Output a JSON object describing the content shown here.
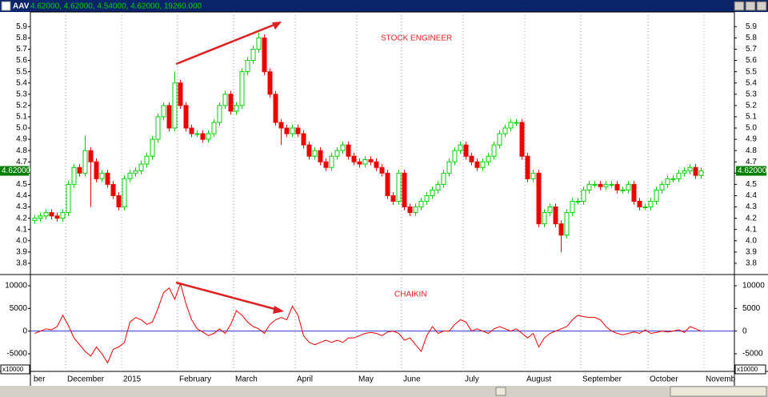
{
  "window": {
    "title": "AAV",
    "quote": "4.62000, 4.62000, 4.54000, 4.62000, 19260.000"
  },
  "chart_data": [
    {
      "type": "candlestick",
      "annotations": [
        "STOCK ENGINEER"
      ],
      "last_label": "4.62000",
      "up_color": "#00d000",
      "down_color": "#ee0000",
      "ylim": [
        3.7,
        6.03
      ],
      "yticks": [
        3.8,
        3.9,
        {
          "value": 4,
          "label": "4.0"
        },
        4.1,
        4.2,
        4.3,
        4.4,
        4.5,
        4.6,
        4.7,
        4.8,
        4.9,
        {
          "value": 5,
          "label": "5.0"
        },
        5.1,
        5.2,
        5.3,
        5.4,
        5.5,
        5.6,
        5.7,
        5.8,
        5.9
      ],
      "grid": true,
      "categories": [
        "ber",
        null,
        null,
        null,
        null,
        null,
        "December",
        null,
        null,
        null,
        null,
        null,
        null,
        null,
        null,
        null,
        "2015",
        null,
        null,
        null,
        null,
        null,
        null,
        null,
        null,
        null,
        "February",
        null,
        null,
        null,
        null,
        null,
        null,
        null,
        null,
        null,
        "March",
        null,
        null,
        null,
        null,
        null,
        null,
        null,
        null,
        null,
        null,
        "April",
        null,
        null,
        null,
        null,
        null,
        null,
        null,
        null,
        null,
        null,
        "May",
        null,
        null,
        null,
        null,
        null,
        null,
        null,
        "June",
        null,
        null,
        null,
        null,
        null,
        null,
        null,
        null,
        null,
        null,
        "July",
        null,
        null,
        null,
        null,
        null,
        null,
        null,
        null,
        null,
        null,
        "August",
        null,
        null,
        null,
        null,
        null,
        null,
        null,
        null,
        null,
        "September",
        null,
        null,
        null,
        null,
        null,
        null,
        null,
        null,
        null,
        null,
        null,
        "October",
        null,
        null,
        null,
        null,
        null,
        null,
        null,
        null,
        null,
        "Novemb",
        null
      ],
      "open": [
        4.18,
        4.2,
        4.22,
        4.25,
        4.22,
        4.2,
        4.25,
        4.5,
        4.65,
        4.6,
        4.8,
        4.7,
        4.55,
        4.6,
        4.5,
        4.4,
        4.3,
        4.55,
        4.6,
        4.62,
        4.68,
        4.75,
        4.9,
        5.1,
        5.2,
        5.0,
        5.4,
        5.2,
        5.0,
        4.95,
        4.95,
        4.9,
        4.95,
        5.05,
        5.2,
        5.3,
        5.15,
        5.2,
        5.5,
        5.6,
        5.7,
        5.8,
        5.5,
        5.3,
        5.05,
        5.0,
        4.95,
        5.0,
        4.95,
        4.85,
        4.75,
        4.8,
        4.7,
        4.65,
        4.75,
        4.8,
        4.85,
        4.75,
        4.7,
        4.68,
        4.72,
        4.7,
        4.65,
        4.6,
        4.4,
        4.35,
        4.6,
        4.3,
        4.25,
        4.3,
        4.35,
        4.4,
        4.45,
        4.5,
        4.6,
        4.7,
        4.8,
        4.85,
        4.75,
        4.7,
        4.65,
        4.7,
        4.75,
        4.85,
        4.95,
        5.0,
        5.05,
        5.05,
        4.75,
        4.55,
        4.6,
        4.15,
        4.25,
        4.3,
        4.15,
        4.05,
        4.25,
        4.35,
        4.35,
        4.45,
        4.5,
        4.5,
        4.48,
        4.5,
        4.5,
        4.45,
        4.45,
        4.5,
        4.35,
        4.3,
        4.3,
        4.35,
        4.45,
        4.5,
        4.55,
        4.55,
        4.6,
        4.62,
        4.65,
        4.58,
        null,
        null
      ],
      "high": [
        4.23,
        4.25,
        4.28,
        4.28,
        4.25,
        4.28,
        4.53,
        4.68,
        4.68,
        4.93,
        4.83,
        4.73,
        4.63,
        4.63,
        4.53,
        4.43,
        4.58,
        4.63,
        4.65,
        4.71,
        4.78,
        4.93,
        5.13,
        5.23,
        5.23,
        5.5,
        5.43,
        5.23,
        5.03,
        4.98,
        4.98,
        4.98,
        5.08,
        5.23,
        5.33,
        5.33,
        5.23,
        5.53,
        5.63,
        5.73,
        5.85,
        5.83,
        5.53,
        5.33,
        5.08,
        5.03,
        5.03,
        5.03,
        4.98,
        4.88,
        4.83,
        4.83,
        4.73,
        4.78,
        4.83,
        4.88,
        4.88,
        4.78,
        4.73,
        4.75,
        4.75,
        4.73,
        4.68,
        4.63,
        4.43,
        4.63,
        4.63,
        4.33,
        4.33,
        4.38,
        4.43,
        4.48,
        4.53,
        4.63,
        4.73,
        4.83,
        4.88,
        4.88,
        4.78,
        4.73,
        4.73,
        4.78,
        4.88,
        4.98,
        5.03,
        5.08,
        5.08,
        5.08,
        4.78,
        4.63,
        4.63,
        4.28,
        4.33,
        4.33,
        4.18,
        4.28,
        4.38,
        4.38,
        4.48,
        4.53,
        4.53,
        4.53,
        4.53,
        4.53,
        4.53,
        4.48,
        4.53,
        4.53,
        4.38,
        4.33,
        4.38,
        4.48,
        4.53,
        4.58,
        4.58,
        4.63,
        4.65,
        4.68,
        4.68,
        4.65,
        null,
        null
      ],
      "low": [
        4.15,
        4.17,
        4.19,
        4.19,
        4.17,
        4.17,
        4.22,
        4.47,
        4.57,
        4.57,
        4.3,
        4.52,
        4.52,
        4.47,
        4.37,
        4.27,
        4.27,
        4.52,
        4.57,
        4.59,
        4.65,
        4.72,
        4.87,
        5.07,
        4.97,
        4.97,
        5.17,
        4.97,
        4.92,
        4.92,
        4.87,
        4.87,
        4.92,
        5.02,
        5.17,
        5.12,
        5.12,
        5.17,
        5.47,
        5.57,
        5.67,
        5.47,
        5.27,
        5.02,
        4.85,
        4.92,
        4.92,
        4.92,
        4.82,
        4.72,
        4.72,
        4.67,
        4.62,
        4.62,
        4.72,
        4.77,
        4.72,
        4.67,
        4.65,
        4.65,
        4.67,
        4.62,
        4.57,
        4.37,
        4.32,
        4.32,
        4.27,
        4.22,
        4.22,
        4.27,
        4.32,
        4.37,
        4.42,
        4.47,
        4.57,
        4.67,
        4.77,
        4.72,
        4.67,
        4.62,
        4.62,
        4.67,
        4.72,
        4.82,
        4.92,
        4.97,
        5.02,
        4.72,
        4.52,
        4.52,
        4.12,
        4.12,
        4.22,
        4.12,
        3.9,
        4.02,
        4.22,
        4.32,
        4.32,
        4.42,
        4.47,
        4.45,
        4.45,
        4.47,
        4.42,
        4.42,
        4.42,
        4.32,
        4.27,
        4.27,
        4.27,
        4.32,
        4.42,
        4.47,
        4.52,
        4.52,
        4.57,
        4.59,
        4.55,
        4.55,
        null,
        null
      ],
      "close": [
        4.2,
        4.22,
        4.25,
        4.22,
        4.2,
        4.25,
        4.5,
        4.65,
        4.6,
        4.8,
        4.7,
        4.55,
        4.6,
        4.5,
        4.4,
        4.3,
        4.55,
        4.6,
        4.62,
        4.68,
        4.75,
        4.9,
        5.1,
        5.2,
        5.0,
        5.4,
        5.2,
        5.0,
        4.95,
        4.95,
        4.9,
        4.95,
        5.05,
        5.2,
        5.3,
        5.15,
        5.2,
        5.5,
        5.6,
        5.7,
        5.8,
        5.5,
        5.3,
        5.05,
        5.0,
        4.95,
        5.0,
        4.95,
        4.85,
        4.75,
        4.8,
        4.7,
        4.65,
        4.75,
        4.8,
        4.85,
        4.75,
        4.7,
        4.68,
        4.72,
        4.7,
        4.65,
        4.6,
        4.4,
        4.35,
        4.6,
        4.3,
        4.25,
        4.3,
        4.35,
        4.4,
        4.45,
        4.5,
        4.6,
        4.7,
        4.8,
        4.85,
        4.75,
        4.7,
        4.65,
        4.7,
        4.75,
        4.85,
        4.95,
        5.0,
        5.05,
        5.05,
        4.75,
        4.55,
        4.6,
        4.15,
        4.25,
        4.3,
        4.15,
        4.05,
        4.25,
        4.35,
        4.35,
        4.45,
        4.5,
        4.5,
        4.48,
        4.5,
        4.5,
        4.45,
        4.45,
        4.5,
        4.35,
        4.3,
        4.3,
        4.35,
        4.45,
        4.5,
        4.55,
        4.55,
        4.6,
        4.62,
        4.65,
        4.58,
        4.62,
        null,
        null
      ]
    },
    {
      "type": "line",
      "annotations": [
        "CHAIKIN"
      ],
      "scale_label": "x10000",
      "ylim": [
        -8880,
        12470
      ],
      "yticks": [
        10000,
        5000,
        0,
        -5000
      ],
      "zero_line_color": "#3333cc",
      "series": [
        {
          "name": "CHAIKIN",
          "color": "#ee0000",
          "values": [
            -500,
            0,
            500,
            300,
            1000,
            3500,
            1200,
            -1500,
            -3000,
            -4500,
            -5500,
            -3500,
            -5000,
            -7000,
            -4000,
            -3500,
            -2500,
            2000,
            3000,
            2500,
            1500,
            2000,
            5000,
            8500,
            9500,
            7000,
            10500,
            6000,
            2500,
            500,
            -200,
            -1000,
            -500,
            500,
            -500,
            1500,
            4500,
            3500,
            2000,
            1000,
            500,
            -500,
            1500,
            2500,
            3000,
            2500,
            5500,
            3500,
            -1000,
            -2500,
            -3000,
            -2500,
            -2000,
            -2500,
            -2000,
            -2500,
            -1500,
            -1500,
            -1000,
            -500,
            -300,
            -500,
            -1000,
            -200,
            0,
            -500,
            -2000,
            -1500,
            -3000,
            -4500,
            -1000,
            1000,
            -500,
            0,
            0,
            1500,
            2500,
            2000,
            0,
            500,
            0,
            -500,
            500,
            1000,
            500,
            0,
            500,
            -500,
            -1500,
            -500,
            -3500,
            -1500,
            -500,
            0,
            500,
            1000,
            2500,
            3500,
            3200,
            3000,
            3000,
            2500,
            1000,
            0,
            -500,
            -800,
            -500,
            -200,
            -500,
            300,
            -500,
            -300,
            0,
            -200,
            0,
            300,
            -300,
            1000,
            500,
            0,
            null,
            null
          ]
        }
      ]
    }
  ]
}
